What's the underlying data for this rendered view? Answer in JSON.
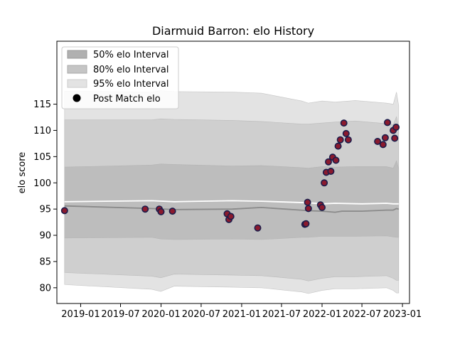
{
  "chart_data": {
    "type": "line",
    "title": "Diarmuid Barron: elo History",
    "xlabel": "",
    "ylabel": "elo score",
    "xlim": [
      "2018-09-15",
      "2023-02-02"
    ],
    "ylim": [
      77,
      127
    ],
    "x_ticks": [
      "2019-01",
      "2019-07",
      "2020-01",
      "2020-07",
      "2021-01",
      "2021-07",
      "2022-01",
      "2022-07",
      "2023-01"
    ],
    "y_ticks": [
      80,
      85,
      90,
      95,
      100,
      105,
      110,
      115
    ],
    "grid": false,
    "legend": {
      "placement": "top-left",
      "entries": [
        "50% elo Interval",
        "80% elo Interval",
        "95% elo Interval",
        "Post Match elo"
      ]
    },
    "colors": {
      "band95": "#e3e3e3",
      "band80": "#cfcfcf",
      "band50": "#bdbdbd",
      "mean_line": "#8a8a8a",
      "median_line": "#ffffff",
      "marker_fill": "#8b1a2e",
      "marker_edge": "#1c1c4a"
    },
    "bands": [
      {
        "name": "95% elo Interval",
        "x": [
          "2018-10-20",
          "2019-11-20",
          "2019-12-31",
          "2020-03-01",
          "2020-11-20",
          "2021-04-01",
          "2021-10-01",
          "2021-10-31",
          "2022-01-01",
          "2022-03-01",
          "2022-06-01",
          "2022-10-20",
          "2022-11-20",
          "2022-12-05",
          "2022-12-15"
        ],
        "lo": [
          80.6,
          79.7,
          79.3,
          80.3,
          80.1,
          80.0,
          79.2,
          78.9,
          79.5,
          79.8,
          79.8,
          80.0,
          79.5,
          79.0,
          79.0
        ],
        "hi": [
          117.5,
          117.3,
          117.6,
          117.4,
          117.3,
          117.1,
          115.6,
          115.2,
          115.6,
          115.4,
          115.7,
          115.2,
          115.0,
          117.3,
          114.7
        ]
      },
      {
        "name": "80% elo Interval",
        "x": [
          "2018-10-20",
          "2019-11-20",
          "2019-12-31",
          "2020-03-01",
          "2020-11-20",
          "2021-04-01",
          "2021-10-01",
          "2021-10-31",
          "2022-01-01",
          "2022-03-01",
          "2022-06-01",
          "2022-10-20",
          "2022-11-20",
          "2022-12-05",
          "2022-12-15"
        ],
        "lo": [
          82.9,
          82.2,
          81.9,
          82.6,
          82.4,
          82.3,
          81.6,
          81.3,
          81.8,
          82.1,
          82.1,
          82.3,
          81.8,
          81.4,
          81.4
        ],
        "hi": [
          112.0,
          112.0,
          112.2,
          112.1,
          111.9,
          111.7,
          111.2,
          111.2,
          111.4,
          111.6,
          111.8,
          111.3,
          111.1,
          112.6,
          110.6
        ]
      },
      {
        "name": "50% elo Interval",
        "x": [
          "2018-10-20",
          "2019-11-20",
          "2019-12-31",
          "2020-03-01",
          "2020-11-20",
          "2021-04-01",
          "2021-10-01",
          "2021-10-31",
          "2022-01-01",
          "2022-03-01",
          "2022-06-01",
          "2022-10-20",
          "2022-11-20",
          "2022-12-05",
          "2022-12-15"
        ],
        "lo": [
          89.5,
          89.6,
          89.3,
          89.2,
          89.3,
          89.2,
          89.6,
          89.6,
          89.8,
          89.8,
          89.8,
          89.9,
          89.7,
          89.6,
          89.6
        ],
        "hi": [
          103.0,
          103.4,
          103.6,
          103.5,
          103.2,
          103.3,
          102.9,
          102.8,
          103.1,
          103.0,
          103.1,
          103.1,
          102.8,
          104.2,
          102.7
        ]
      }
    ],
    "lines": [
      {
        "name": "mean",
        "x": [
          "2018-10-20",
          "2019-11-20",
          "2020-03-01",
          "2020-11-20",
          "2021-04-01",
          "2021-10-31",
          "2022-01-01",
          "2022-03-01",
          "2022-04-01",
          "2022-07-01",
          "2022-10-20",
          "2022-11-20",
          "2022-12-05",
          "2022-12-15"
        ],
        "y": [
          95.6,
          95.1,
          94.9,
          95.0,
          95.3,
          94.7,
          94.6,
          94.4,
          94.6,
          94.6,
          94.8,
          94.8,
          95.1,
          95.0
        ]
      },
      {
        "name": "median",
        "x": [
          "2018-10-20",
          "2019-11-20",
          "2020-03-01",
          "2020-11-20",
          "2021-04-01",
          "2021-10-31",
          "2022-01-01",
          "2022-03-01",
          "2022-07-01",
          "2022-10-20",
          "2022-11-20",
          "2022-12-15"
        ],
        "y": [
          96.4,
          96.6,
          96.4,
          96.6,
          96.5,
          96.2,
          96.0,
          96.1,
          96.0,
          96.1,
          96.0,
          96.0
        ]
      }
    ],
    "series": [
      {
        "name": "Post Match elo",
        "x": [
          "2018-10-20",
          "2019-10-21",
          "2019-12-24",
          "2020-01-01",
          "2020-02-22",
          "2020-10-27",
          "2020-11-04",
          "2020-11-13",
          "2021-03-15",
          "2021-10-15",
          "2021-10-20",
          "2021-10-27",
          "2021-10-31",
          "2021-12-25",
          "2022-01-01",
          "2022-01-11",
          "2022-01-20",
          "2022-01-30",
          "2022-02-10",
          "2022-02-18",
          "2022-03-05",
          "2022-03-15",
          "2022-03-25",
          "2022-04-10",
          "2022-04-20",
          "2022-04-30",
          "2022-09-10",
          "2022-10-05",
          "2022-10-15",
          "2022-10-25",
          "2022-11-20",
          "2022-11-27",
          "2022-12-03"
        ],
        "y": [
          94.7,
          95.0,
          95.0,
          94.5,
          94.6,
          94.1,
          93.0,
          93.6,
          91.4,
          92.1,
          92.2,
          96.3,
          95.1,
          95.8,
          95.3,
          100.0,
          102.0,
          104.0,
          102.2,
          104.9,
          104.3,
          107.0,
          108.2,
          111.4,
          109.4,
          108.2,
          107.9,
          107.3,
          108.6,
          111.5,
          110.0,
          108.5,
          110.6
        ]
      }
    ]
  }
}
